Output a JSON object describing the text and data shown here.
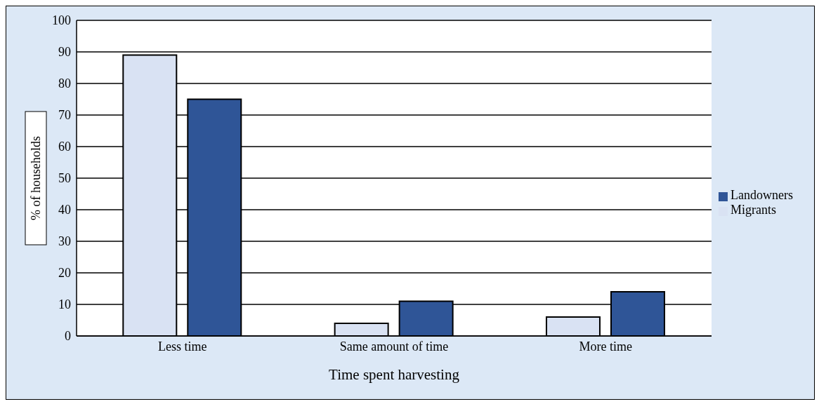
{
  "chart_data": {
    "type": "bar",
    "xlabel": "Time spent harvesting",
    "ylabel": "% of households",
    "categories": [
      "Less time",
      "Same amount of time",
      "More time"
    ],
    "series": [
      {
        "name": "Migrants",
        "color": "#d9e2f3",
        "values": [
          89,
          4,
          6
        ]
      },
      {
        "name": "Landowners",
        "color": "#2f5597",
        "values": [
          75,
          11,
          14
        ]
      }
    ],
    "ylim": [
      0,
      100
    ],
    "yticks": [
      0,
      10,
      20,
      30,
      40,
      50,
      60,
      70,
      80,
      90,
      100
    ],
    "grid": "y",
    "legend": "right"
  }
}
